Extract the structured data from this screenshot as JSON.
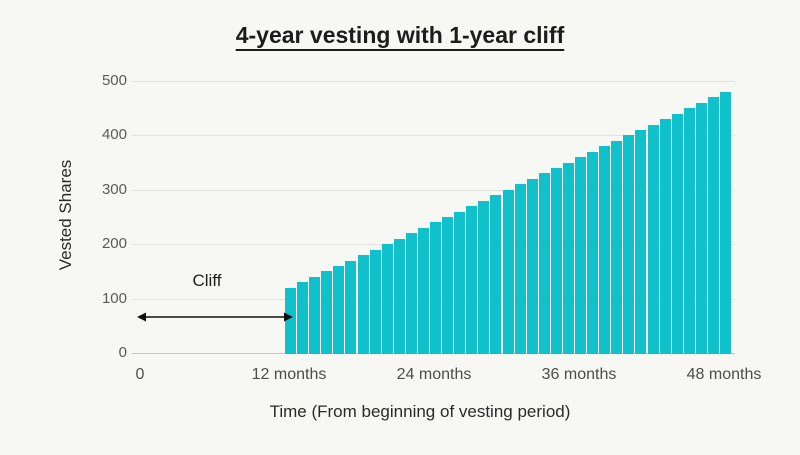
{
  "title": "4-year vesting with 1-year cliff",
  "annotation": {
    "cliff_label": "Cliff"
  },
  "chart_data": {
    "type": "bar",
    "title": "4-year vesting with 1-year cliff",
    "xlabel": "Time (From beginning of vesting period)",
    "ylabel": "Vested Shares",
    "ylim": [
      0,
      500
    ],
    "xlim_months": [
      0,
      48
    ],
    "grid": true,
    "y_ticks": [
      0,
      100,
      200,
      300,
      400,
      500
    ],
    "x_ticks": [
      {
        "month": 0,
        "label": "0"
      },
      {
        "month": 12,
        "label": "12 months"
      },
      {
        "month": 24,
        "label": "24 months"
      },
      {
        "month": 36,
        "label": "36 months"
      },
      {
        "month": 48,
        "label": "48 months"
      }
    ],
    "bar_color": "#10c0ca",
    "background_color": "#f7f7f4",
    "months": [
      12,
      13,
      14,
      15,
      16,
      17,
      18,
      19,
      20,
      21,
      22,
      23,
      24,
      25,
      26,
      27,
      28,
      29,
      30,
      31,
      32,
      33,
      34,
      35,
      36,
      37,
      38,
      39,
      40,
      41,
      42,
      43,
      44,
      45,
      46,
      47,
      48
    ],
    "values": [
      120,
      130,
      140,
      150,
      160,
      170,
      180,
      190,
      200,
      210,
      220,
      230,
      240,
      250,
      260,
      270,
      280,
      290,
      300,
      310,
      320,
      330,
      340,
      350,
      360,
      370,
      380,
      390,
      400,
      410,
      420,
      430,
      440,
      450,
      460,
      470,
      480
    ],
    "annotation": {
      "label": "Cliff",
      "arrow_from_month": 0,
      "arrow_to_month": 12,
      "arrow_y_value": 68
    }
  }
}
